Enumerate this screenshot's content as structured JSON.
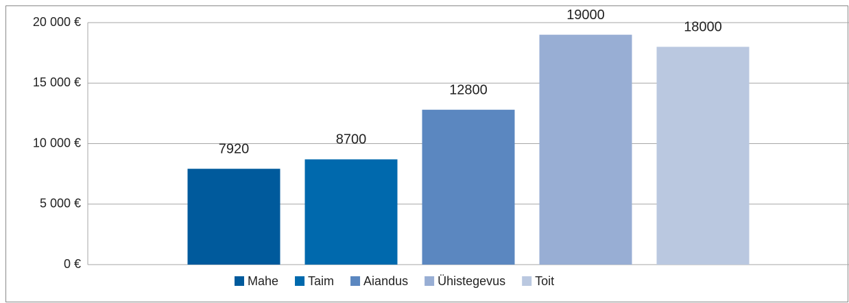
{
  "chart_data": {
    "type": "bar",
    "series": [
      {
        "name": "Mahe",
        "color": "#005a9c",
        "values": [
          7920
        ]
      },
      {
        "name": "Taim",
        "color": "#0069ad",
        "values": [
          8700
        ]
      },
      {
        "name": "Aiandus",
        "color": "#5b87c0",
        "values": [
          12800
        ]
      },
      {
        "name": "Ühistegevus",
        "color": "#98aed4",
        "values": [
          19000
        ]
      },
      {
        "name": "Toit",
        "color": "#bac8e0",
        "values": [
          18000
        ]
      }
    ],
    "ylim": [
      0,
      20000
    ],
    "yticks": [
      {
        "value": 0,
        "label": "0 €"
      },
      {
        "value": 5000,
        "label": "5 000 €"
      },
      {
        "value": 10000,
        "label": "10 000 €"
      },
      {
        "value": 15000,
        "label": "15 000 €"
      },
      {
        "value": 20000,
        "label": "20 000 €"
      }
    ],
    "grid": true,
    "legend": "bottom"
  }
}
